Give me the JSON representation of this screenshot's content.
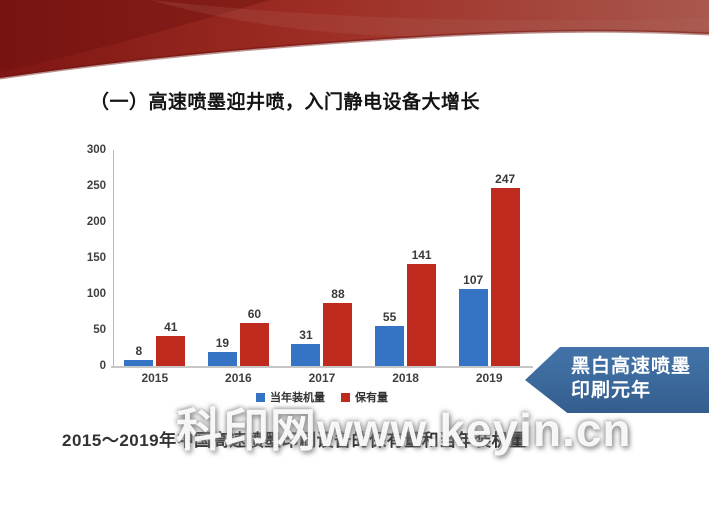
{
  "slide": {
    "title": "（一）高速喷墨迎井喷，入门静电设备大增长",
    "caption": "2015～2019年中国高速喷墨印刷设备的保有量和当年装机量",
    "watermark": "科印网www.keyin.cn",
    "annotation": {
      "line1": "黑白高速喷墨",
      "line2": "印刷元年",
      "bg_color": "#3D6B9E"
    },
    "decoration": {
      "swoosh_dark_red": "#7E1613",
      "swoosh_mid_red": "#9E2D24",
      "swoosh_light_red": "#A9584E"
    }
  },
  "chart_data": {
    "type": "bar",
    "categories": [
      "2015",
      "2016",
      "2017",
      "2018",
      "2019"
    ],
    "series": [
      {
        "name": "当年装机量",
        "color": "#3574C4",
        "values": [
          8,
          19,
          31,
          55,
          107
        ]
      },
      {
        "name": "保有量",
        "color": "#BF2A1F",
        "values": [
          41,
          60,
          88,
          141,
          247
        ]
      }
    ],
    "title": "",
    "xlabel": "",
    "ylabel": "",
    "ylim": [
      0,
      300
    ],
    "yticks": [
      0,
      50,
      100,
      150,
      200,
      250,
      300
    ],
    "grid": false,
    "legend_position": "bottom"
  }
}
